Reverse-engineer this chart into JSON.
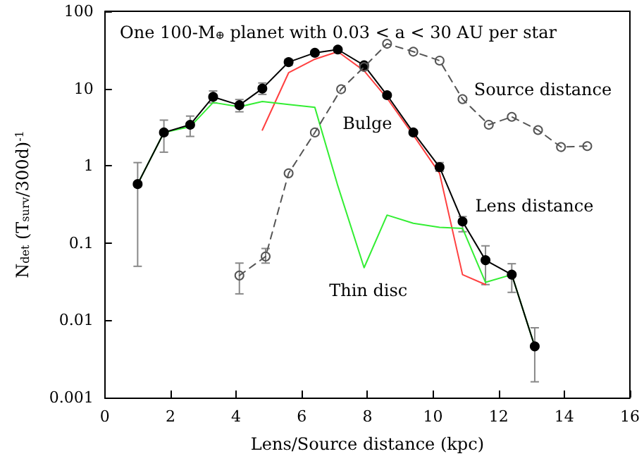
{
  "chart_data": {
    "type": "line",
    "title": "One 100-M$_{⊕}$ planet with 0.03 < a < 30 AU per star",
    "xlabel": "Lens/Source distance (kpc)",
    "ylabel": "N$_{det}$ (T$_{surv}$/300d)$^{-1}$",
    "xlim": [
      0,
      16
    ],
    "xticks": [
      0,
      2,
      4,
      6,
      8,
      10,
      12,
      14,
      16
    ],
    "ylim": [
      0.001,
      100
    ],
    "yticks": [
      0.001,
      0.01,
      0.1,
      1,
      10,
      100
    ],
    "log": "y",
    "grid": false,
    "legend": false,
    "series": [
      {
        "name": "Lens distance",
        "color": "#000000",
        "marker": "circle",
        "line_style": "solid",
        "x": [
          1.0,
          1.8,
          2.6,
          3.3,
          4.1,
          4.8,
          5.6,
          6.4,
          7.1,
          7.9,
          8.6,
          9.4,
          10.2,
          10.9,
          11.6,
          12.4,
          13.1
        ],
        "values": [
          0.58,
          2.7,
          3.4,
          7.8,
          6.1,
          10,
          22,
          29,
          32,
          20,
          8.2,
          2.7,
          0.96,
          0.19,
          0.06,
          0.039,
          0.0046
        ],
        "errors": [
          [
            0.05,
            1.1
          ],
          [
            1.5,
            3.9
          ],
          [
            2.4,
            4.4
          ],
          [
            6.5,
            9.3
          ],
          [
            5,
            7.2
          ],
          [
            8.4,
            11.8
          ],
          [
            20,
            24
          ],
          null,
          null,
          null,
          null,
          null,
          [
            0.85,
            1.1
          ],
          [
            0.14,
            0.22
          ],
          [
            0.029,
            0.092
          ],
          [
            0.023,
            0.054
          ],
          [
            0.0016,
            0.008
          ]
        ]
      },
      {
        "name": "Source distance",
        "color": "#555555",
        "marker": "circle",
        "line_style": "dashed",
        "x": [
          4.1,
          4.9,
          5.6,
          6.4,
          7.2,
          7.9,
          8.6,
          9.4,
          10.2,
          10.9,
          11.7,
          12.4,
          13.2,
          13.9,
          14.7
        ],
        "values": [
          0.038,
          0.067,
          0.8,
          2.7,
          9.8,
          19,
          38,
          30,
          23,
          7.3,
          3.4,
          4.3,
          2.9,
          1.75,
          1.8
        ],
        "errors": [
          [
            0.022,
            0.055
          ],
          [
            0.055,
            0.085
          ],
          null,
          null,
          null,
          null,
          null,
          null,
          null,
          null,
          null,
          null,
          null,
          null,
          null
        ]
      },
      {
        "name": "Bulge",
        "color": "#ff4040",
        "marker": "none",
        "line_style": "solid",
        "x": [
          4.8,
          5.6,
          6.4,
          7.1,
          7.9,
          8.6,
          9.4,
          10.2,
          10.9,
          11.6
        ],
        "values": [
          2.9,
          16,
          24,
          30,
          17,
          7.5,
          2.5,
          0.8,
          0.039,
          0.029
        ]
      },
      {
        "name": "Thin disc",
        "color": "#33ee33",
        "marker": "none",
        "line_style": "solid",
        "x": [
          1.0,
          1.8,
          2.6,
          3.3,
          4.1,
          4.8,
          5.6,
          6.4,
          7.1,
          7.9,
          8.6,
          9.4,
          10.2,
          10.9,
          11.6,
          12.4,
          13.1
        ],
        "values": [
          0.58,
          2.7,
          3.2,
          6.6,
          5.8,
          6.8,
          6.2,
          5.7,
          0.55,
          0.048,
          0.23,
          0.18,
          0.16,
          0.155,
          0.031,
          0.039,
          0.0046
        ]
      }
    ]
  }
}
